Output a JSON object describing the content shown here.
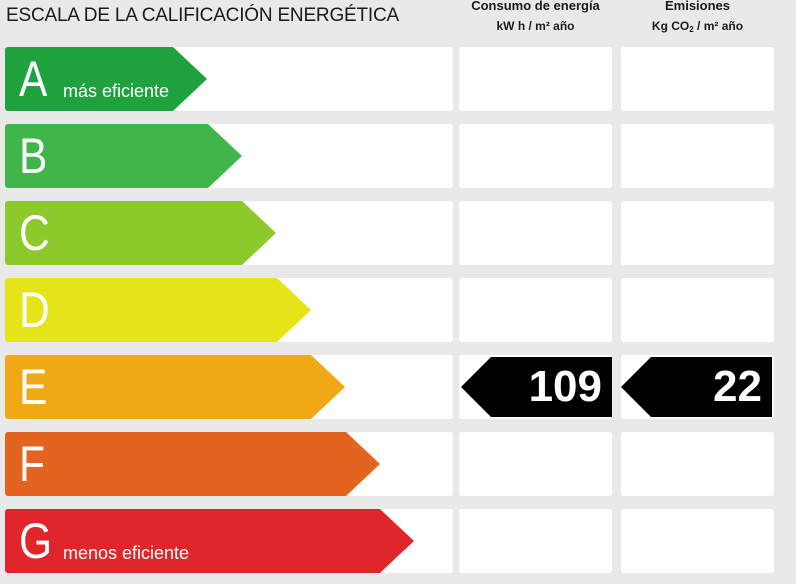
{
  "title": "ESCALA DE LA CALIFICACIÓN ENERGÉTICA",
  "columns": {
    "energy": {
      "heading": "Consumo de energía",
      "unit": "kW h / m² año"
    },
    "emissions": {
      "heading": "Emisiones",
      "unit_prefix": "Kg CO",
      "unit_sub": "2",
      "unit_suffix": " / m² año"
    }
  },
  "ratings": [
    {
      "letter": "A",
      "note": "más eficiente",
      "color": "#1fa13e",
      "level": 1
    },
    {
      "letter": "B",
      "note": "",
      "color": "#3fb54a",
      "level": 2
    },
    {
      "letter": "C",
      "note": "",
      "color": "#8cc92a",
      "level": 3
    },
    {
      "letter": "D",
      "note": "",
      "color": "#e4e419",
      "level": 4
    },
    {
      "letter": "E",
      "note": "",
      "color": "#f0a914",
      "level": 5
    },
    {
      "letter": "F",
      "note": "",
      "color": "#e2641f",
      "level": 6
    },
    {
      "letter": "G",
      "note": "menos eficiente",
      "color": "#e0262a",
      "level": 7
    }
  ],
  "result": {
    "rating": "E",
    "energy_value": "109",
    "emissions_value": "22"
  }
}
